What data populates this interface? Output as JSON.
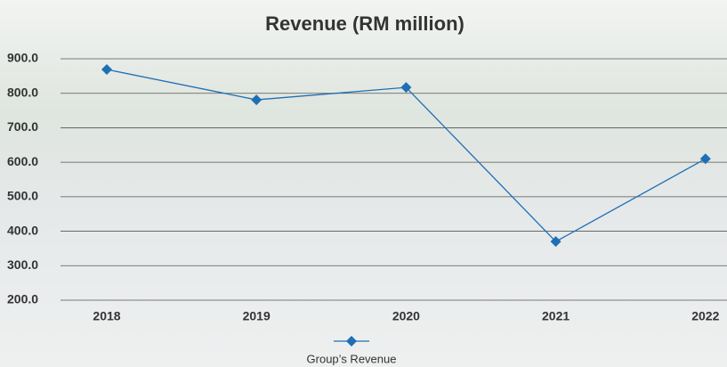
{
  "chart_data": {
    "type": "line",
    "title": "Revenue (RM million)",
    "categories": [
      "2018",
      "2019",
      "2020",
      "2021",
      "2022"
    ],
    "series": [
      {
        "name": "Group’s Revenue",
        "color": "#1f6fb5",
        "values": [
          869,
          781,
          817,
          370,
          610
        ]
      }
    ],
    "ylim": [
      200,
      900
    ],
    "yticks": [
      {
        "value": 200,
        "label": "200.0"
      },
      {
        "value": 300,
        "label": "300.0"
      },
      {
        "value": 400,
        "label": "400.0"
      },
      {
        "value": 500,
        "label": "500.0"
      },
      {
        "value": 600,
        "label": "600.0"
      },
      {
        "value": 700,
        "label": "700.0"
      },
      {
        "value": 800,
        "label": "800.0"
      },
      {
        "value": 900,
        "label": "900.0"
      }
    ],
    "grid": true,
    "legend": "bottom"
  }
}
